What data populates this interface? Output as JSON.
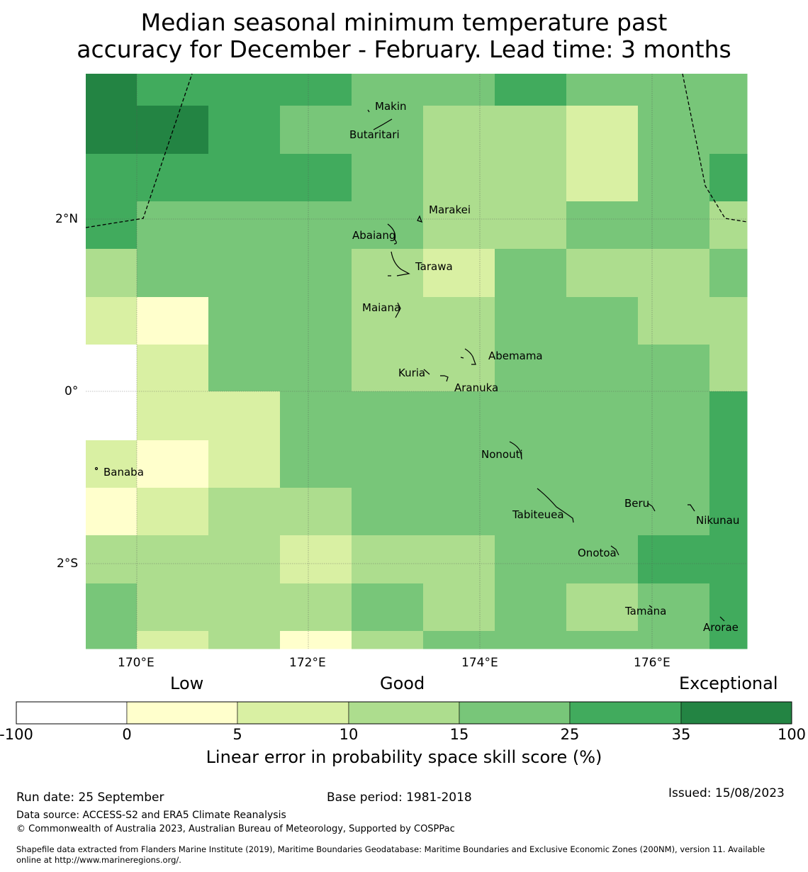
{
  "title_line1": "Median seasonal minimum temperature past",
  "title_line2": "accuracy for December - February. Lead time: 3 months",
  "axes": {
    "lon_labels": [
      "170°E",
      "172°E",
      "174°E",
      "176°E"
    ],
    "lat_labels": [
      "2°N",
      "0°",
      "2°S"
    ]
  },
  "map": {
    "skill_grid_level_index_rows_north_to_south": [
      [
        6,
        5,
        5,
        5,
        5,
        4,
        4,
        4,
        5,
        5,
        4,
        4,
        4,
        4
      ],
      [
        6,
        6,
        5,
        5,
        4,
        4,
        4,
        3,
        3,
        3,
        2,
        2,
        4,
        4
      ],
      [
        5,
        5,
        5,
        5,
        5,
        4,
        4,
        3,
        3,
        3,
        2,
        2,
        4,
        5
      ],
      [
        5,
        4,
        4,
        4,
        4,
        4,
        4,
        3,
        3,
        3,
        4,
        4,
        4,
        3
      ],
      [
        3,
        4,
        4,
        4,
        4,
        3,
        3,
        2,
        3,
        4,
        4,
        3,
        3,
        4
      ],
      [
        2,
        1,
        1,
        4,
        4,
        3,
        3,
        3,
        3,
        4,
        4,
        4,
        3,
        3
      ],
      [
        0,
        2,
        2,
        4,
        4,
        3,
        3,
        3,
        3,
        4,
        4,
        4,
        4,
        3
      ],
      [
        0,
        2,
        2,
        2,
        4,
        4,
        4,
        4,
        4,
        4,
        4,
        4,
        4,
        5
      ],
      [
        2,
        1,
        1,
        2,
        4,
        4,
        4,
        4,
        4,
        4,
        4,
        4,
        4,
        5
      ],
      [
        1,
        2,
        2,
        3,
        3,
        3,
        4,
        4,
        4,
        4,
        4,
        4,
        4,
        5
      ],
      [
        3,
        3,
        3,
        3,
        2,
        2,
        3,
        3,
        3,
        4,
        4,
        5,
        5,
        5
      ],
      [
        4,
        3,
        3,
        3,
        3,
        3,
        4,
        4,
        3,
        4,
        3,
        3,
        4,
        5
      ],
      [
        4,
        2,
        2,
        3,
        3,
        1,
        3,
        4,
        4,
        4,
        4,
        4,
        4,
        5
      ]
    ]
  },
  "places": [
    "Makin",
    "Butaritari",
    "Marakei",
    "Abaiang",
    "Tarawa",
    "Maiana",
    "Abemama",
    "Kuria",
    "Aranuka",
    "Nonouti",
    "Banaba",
    "Beru",
    "Nikunau",
    "Tabiteuea",
    "Onotoa",
    "Tamana",
    "Arorae"
  ],
  "legend": {
    "categories": [
      "Low",
      "Good",
      "Exceptional"
    ],
    "ticks": [
      "-100",
      "0",
      "5",
      "10",
      "15",
      "25",
      "35",
      "100"
    ],
    "colors": [
      "#ffffff",
      "#ffffcc",
      "#d9f0a3",
      "#addd8e",
      "#78c679",
      "#41ab5d",
      "#238443"
    ],
    "title": "Linear error in probability space skill score (%)"
  },
  "footer": {
    "run_date": "Run date: 25 September",
    "base_period": "Base period: 1981-2018",
    "issued": "Issued: 15/08/2023",
    "data_source": "Data source: ACCESS-S2 and ERA5 Climate Reanalysis",
    "copyright": "© Commonwealth of Australia 2023, Australian Bureau of Meteorology, Supported by COSPPac",
    "shapefile_line1": "Shapefile data extracted from Flanders Marine Institute (2019), Maritime Boundaries Geodatabase: Maritime Boundaries and Exclusive Economic Zones (200NM), version 11. Available",
    "shapefile_line2": "online at http://www.marineregions.org/."
  }
}
